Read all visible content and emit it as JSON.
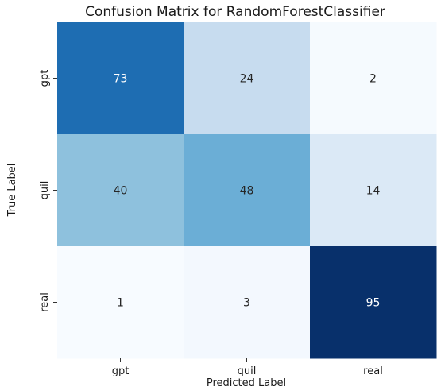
{
  "chart_data": {
    "type": "heatmap",
    "title": "Confusion Matrix for RandomForestClassifier",
    "xlabel": "Predicted Label",
    "ylabel": "True Label",
    "x_categories": [
      "gpt",
      "quil",
      "real"
    ],
    "y_categories": [
      "gpt",
      "quil",
      "real"
    ],
    "values": [
      [
        73,
        24,
        2
      ],
      [
        40,
        48,
        14
      ],
      [
        1,
        3,
        95
      ]
    ],
    "colormap": "Blues",
    "colorbar": false,
    "grid": false
  }
}
